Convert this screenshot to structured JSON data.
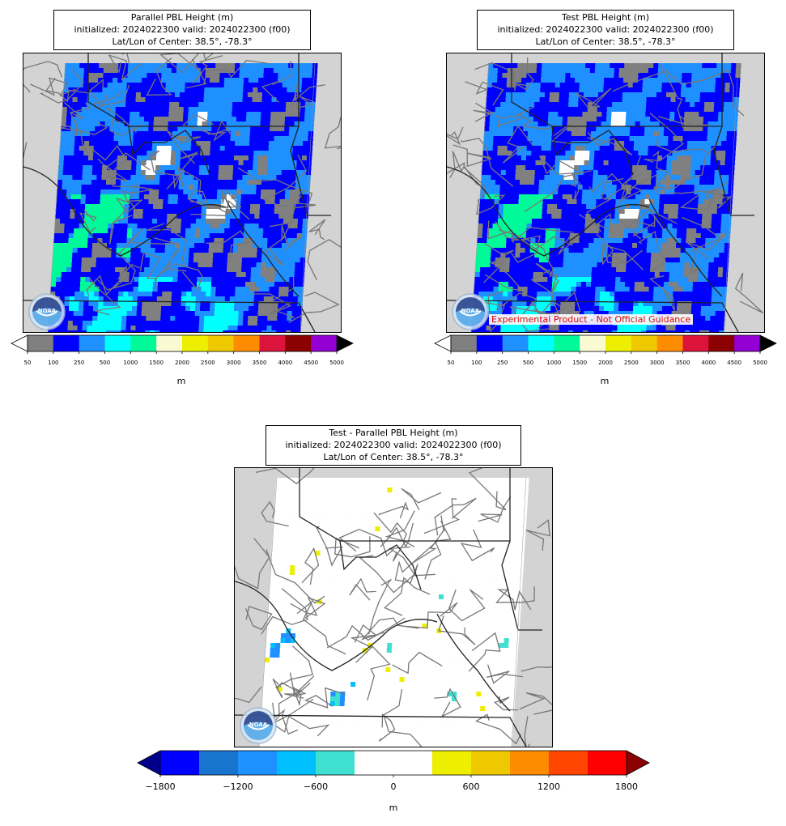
{
  "panels": [
    {
      "id": "parallel",
      "title_lines": [
        "Parallel PBL Height (m)",
        "initialized: 2024022300 valid: 2024022300 (f00)",
        "Lat/Lon of Center: 38.5°, -78.3°"
      ],
      "field": "pbl",
      "experimental_label": "",
      "logo_text": "NOAA",
      "colorbar": {
        "ticks": [
          "50",
          "100",
          "250",
          "500",
          "1000",
          "1500",
          "2000",
          "2500",
          "3000",
          "3500",
          "4000",
          "4500",
          "5000"
        ],
        "colors": [
          "#808080",
          "#0000ff",
          "#1e90ff",
          "#00ffff",
          "#00fa9a",
          "#fafad2",
          "#eeee00",
          "#eec900",
          "#ff8c00",
          "#dc143c",
          "#8b0000",
          "#9400d3"
        ],
        "under_color": "#ffffff",
        "over_color": "#000000",
        "unit": "m"
      }
    },
    {
      "id": "test",
      "title_lines": [
        "Test PBL Height (m)",
        "initialized: 2024022300 valid: 2024022300 (f00)",
        "Lat/Lon of Center: 38.5°, -78.3°"
      ],
      "field": "pbl",
      "experimental_label": "Experimental Product - Not Official Guidance",
      "logo_text": "NOAA",
      "colorbar": {
        "ticks": [
          "50",
          "100",
          "250",
          "500",
          "1000",
          "1500",
          "2000",
          "2500",
          "3000",
          "3500",
          "4000",
          "4500",
          "5000"
        ],
        "colors": [
          "#808080",
          "#0000ff",
          "#1e90ff",
          "#00ffff",
          "#00fa9a",
          "#fafad2",
          "#eeee00",
          "#eec900",
          "#ff8c00",
          "#dc143c",
          "#8b0000",
          "#9400d3"
        ],
        "under_color": "#ffffff",
        "over_color": "#000000",
        "unit": "m"
      }
    },
    {
      "id": "difference",
      "title_lines": [
        "Test - Parallel PBL Height (m)",
        "initialized: 2024022300 valid: 2024022300 (f00)",
        "Lat/Lon of Center: 38.5°, -78.3°"
      ],
      "field": "diff",
      "experimental_label": "",
      "logo_text": "NOAA",
      "colorbar": {
        "ticks": [
          "−1800",
          "−1200",
          "−600",
          "0",
          "600",
          "1200",
          "1800"
        ],
        "colors": [
          "#0000ff",
          "#1874cd",
          "#1e90ff",
          "#00bfff",
          "#40e0d0",
          "#ffffff",
          "#ffffff",
          "#eeee00",
          "#eec900",
          "#ff8c00",
          "#ff4500",
          "#ff0000"
        ],
        "under_color": "#00008b",
        "over_color": "#8b0000",
        "unit": "m"
      }
    }
  ],
  "chart_data": [
    {
      "type": "heatmap",
      "title": "Parallel PBL Height (m)",
      "subtitle": "initialized: 2024022300 valid: 2024022300 (f00)",
      "center": "Lat/Lon of Center: 38.5°, -78.3°",
      "colorbar_levels": [
        50,
        100,
        250,
        500,
        1000,
        1500,
        2000,
        2500,
        3000,
        3500,
        4000,
        4500,
        5000
      ],
      "colorbar_label": "m",
      "dominant_values": "mostly 100–500 m (blue), 1000–1500 m west-southwest, <100 m over mountains and Chesapeake Bay"
    },
    {
      "type": "heatmap",
      "title": "Test PBL Height (m)",
      "subtitle": "initialized: 2024022300 valid: 2024022300 (f00)",
      "center": "Lat/Lon of Center: 38.5°, -78.3°",
      "colorbar_levels": [
        50,
        100,
        250,
        500,
        1000,
        1500,
        2000,
        2500,
        3000,
        3500,
        4000,
        4500,
        5000
      ],
      "colorbar_label": "m"
    },
    {
      "type": "heatmap",
      "title": "Test - Parallel PBL Height (m)",
      "subtitle": "initialized: 2024022300 valid: 2024022300 (f00)",
      "center": "Lat/Lon of Center: 38.5°, -78.3°",
      "colorbar_levels": [
        -1800,
        -1500,
        -1200,
        -900,
        -600,
        -300,
        0,
        300,
        600,
        900,
        1200,
        1500,
        1800
      ],
      "colorbar_label": "m",
      "dominant_values": "near 0 almost everywhere; small -300 to -900 patches in western Virginia/West Virginia; a few +300 to +600 speckles"
    }
  ]
}
